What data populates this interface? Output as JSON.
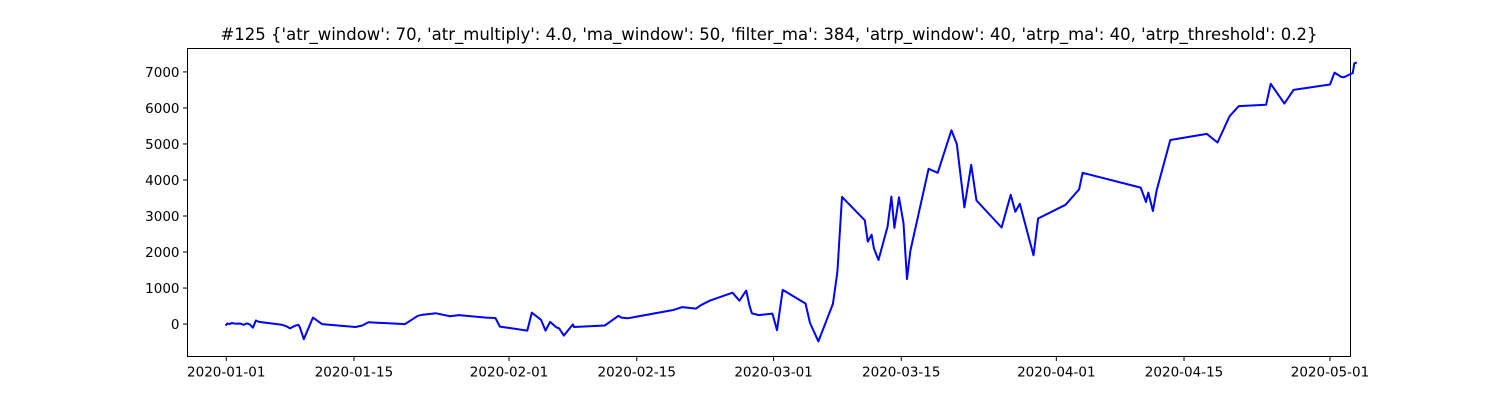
{
  "chart_data": {
    "type": "line",
    "title": "#125 {'atr_window': 70, 'atr_multiply': 4.0, 'ma_window': 50, 'filter_ma': 384, 'atrp_window': 40, 'atrp_ma': 40, 'atrp_threshold': 0.2}",
    "xlabel": "",
    "ylabel": "",
    "x_type": "date",
    "xlim": [
      "2019-12-27T18:00",
      "2020-05-03T06:00"
    ],
    "ylim": [
      -900,
      7650
    ],
    "xticks": [
      "2020-01-01",
      "2020-01-15",
      "2020-02-01",
      "2020-02-15",
      "2020-03-01",
      "2020-03-15",
      "2020-04-01",
      "2020-04-15",
      "2020-05-01"
    ],
    "yticks": [
      0,
      1000,
      2000,
      3000,
      4000,
      5000,
      6000,
      7000
    ],
    "grid": false,
    "legend": "none",
    "line_color": "#0000ff",
    "series": [
      {
        "x": [
          "2020-01-01T00:00",
          "2020-01-01T03:00",
          "2020-01-01T09:00",
          "2020-01-01T14:00",
          "2020-01-02T00:00",
          "2020-01-02T12:00",
          "2020-01-02T22:00",
          "2020-01-03T06:00",
          "2020-01-03T14:00",
          "2020-01-03T22:00",
          "2020-01-04T06:00",
          "2020-01-04T14:00",
          "2020-01-07T02:00",
          "2020-01-07T14:00",
          "2020-01-08T00:00",
          "2020-01-08T12:00",
          "2020-01-08T22:00",
          "2020-01-09T02:00",
          "2020-01-09T12:00",
          "2020-01-10T12:00",
          "2020-01-11T12:00",
          "2020-01-15T04:00",
          "2020-01-15T22:00",
          "2020-01-16T14:00",
          "2020-01-20T14:00",
          "2020-01-22T00:00",
          "2020-01-22T12:00",
          "2020-01-22T22:00",
          "2020-01-24T00:00",
          "2020-01-25T12:00",
          "2020-01-26T12:00",
          "2020-01-29T12:00",
          "2020-01-30T12:00",
          "2020-01-31T00:00",
          "2020-02-03T00:00",
          "2020-02-03T12:00",
          "2020-02-04T12:00",
          "2020-02-05T00:00",
          "2020-02-05T12:00",
          "2020-02-06T04:00",
          "2020-02-06T12:00",
          "2020-02-07T00:00",
          "2020-02-08T00:00",
          "2020-02-08T03:00",
          "2020-02-11T12:00",
          "2020-02-13T00:00",
          "2020-02-13T08:00",
          "2020-02-14T00:00",
          "2020-02-19T00:00",
          "2020-02-19T12:00",
          "2020-02-20T00:00",
          "2020-02-21T12:00",
          "2020-02-22T00:00",
          "2020-02-23T00:00",
          "2020-02-25T12:00",
          "2020-02-26T06:00",
          "2020-02-27T00:00",
          "2020-02-27T09:00",
          "2020-02-27T15:00",
          "2020-02-28T09:00",
          "2020-02-29T21:00",
          "2020-03-01T09:00",
          "2020-03-02T00:00",
          "2020-03-04T12:00",
          "2020-03-05T00:00",
          "2020-03-05T22:00",
          "2020-03-07T12:00",
          "2020-03-08T00:00",
          "2020-03-08T12:00",
          "2020-03-11T00:00",
          "2020-03-11T08:00",
          "2020-03-11T18:00",
          "2020-03-12T00:00",
          "2020-03-12T12:00",
          "2020-03-13T12:00",
          "2020-03-13T22:00",
          "2020-03-14T06:00",
          "2020-03-14T18:00",
          "2020-03-15T06:00",
          "2020-03-15T15:00",
          "2020-03-16T00:00",
          "2020-03-18T00:00",
          "2020-03-19T00:00",
          "2020-03-20T12:00",
          "2020-03-21T02:00",
          "2020-03-21T22:00",
          "2020-03-22T16:00",
          "2020-03-23T06:00",
          "2020-03-26T00:00",
          "2020-03-27T00:00",
          "2020-03-27T12:00",
          "2020-03-28T00:00",
          "2020-03-29T12:00",
          "2020-03-30T00:00",
          "2020-04-02T00:00",
          "2020-04-03T12:00",
          "2020-04-03T21:00",
          "2020-04-10T06:00",
          "2020-04-10T20:00",
          "2020-04-11T02:00",
          "2020-04-11T14:00",
          "2020-04-12T00:00",
          "2020-04-13T12:00",
          "2020-04-17T12:00",
          "2020-04-18T16:00",
          "2020-04-20T00:00",
          "2020-04-21T00:00",
          "2020-04-24T00:00",
          "2020-04-24T12:00",
          "2020-04-26T00:00",
          "2020-04-27T00:00",
          "2020-05-01T00:00",
          "2020-05-01T12:00",
          "2020-05-02T06:00",
          "2020-05-02T12:00",
          "2020-05-03T12:00",
          "2020-05-03T16:00",
          "2020-05-03T20:00"
        ],
        "y": [
          -20,
          20,
          0,
          30,
          10,
          15,
          -20,
          20,
          -10,
          -100,
          100,
          60,
          -20,
          -60,
          -120,
          -50,
          -20,
          -100,
          -420,
          180,
          0,
          -80,
          -40,
          50,
          0,
          230,
          260,
          270,
          300,
          220,
          250,
          180,
          170,
          -70,
          -180,
          320,
          120,
          -180,
          60,
          -90,
          -120,
          -320,
          -10,
          -80,
          -40,
          230,
          180,
          160,
          390,
          430,
          470,
          430,
          520,
          650,
          870,
          650,
          930,
          500,
          300,
          250,
          290,
          -170,
          950,
          570,
          30,
          -480,
          560,
          1450,
          3530,
          2880,
          2290,
          2480,
          2100,
          1780,
          2710,
          3540,
          2670,
          3520,
          2800,
          1250,
          2040,
          4310,
          4200,
          5380,
          5000,
          3240,
          4420,
          3430,
          2680,
          3590,
          3120,
          3340,
          1910,
          2930,
          3310,
          3740,
          4200,
          3790,
          3390,
          3650,
          3140,
          3720,
          5110,
          5280,
          5040,
          5770,
          6050,
          6090,
          6670,
          6120,
          6500,
          6650,
          6980,
          6860,
          6850,
          6970,
          7240,
          7250
        ]
      }
    ]
  }
}
